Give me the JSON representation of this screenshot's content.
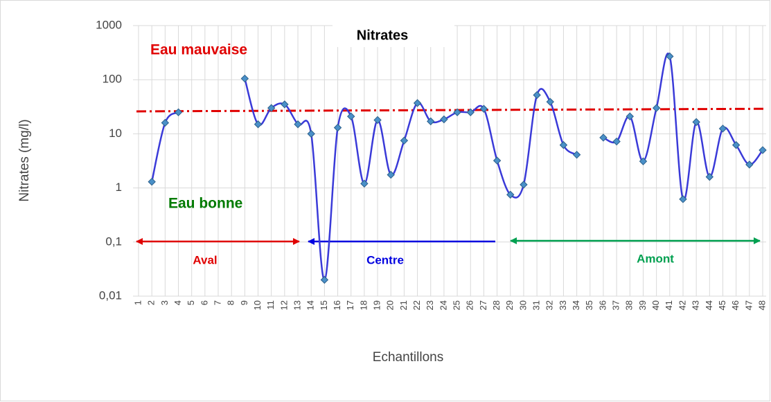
{
  "chart_data": {
    "type": "line",
    "title": "Nitrates",
    "y_label": "Nitrates   (mg/l)",
    "x_label": "Echantillons",
    "categories": [
      "1",
      "2",
      "3",
      "4",
      "5",
      "6",
      "7",
      "8",
      "9",
      "10",
      "11",
      "12",
      "13",
      "14",
      "15",
      "16",
      "17",
      "18",
      "19",
      "20",
      "21",
      "22",
      "23",
      "24",
      "25",
      "26",
      "27",
      "28",
      "29",
      "30",
      "31",
      "32",
      "33",
      "34",
      "35",
      "36",
      "37",
      "38",
      "39",
      "40",
      "41",
      "42",
      "43",
      "44",
      "45",
      "46",
      "47",
      "48"
    ],
    "series": [
      {
        "name": "Nitrates",
        "color": "#3a3ad8",
        "marker_color": "#4a90c8",
        "values": [
          null,
          1.3,
          16,
          25,
          null,
          null,
          null,
          null,
          105,
          15,
          30,
          35,
          15,
          10,
          0.02,
          13,
          21,
          1.2,
          18,
          1.75,
          7.5,
          37,
          17,
          18.5,
          25,
          25,
          29,
          3.2,
          0.75,
          1.15,
          52,
          39,
          6.2,
          4.1,
          null,
          8.5,
          7.2,
          21,
          3.1,
          30,
          270,
          0.62,
          16.5,
          1.6,
          12.5,
          6.2,
          2.7,
          5
        ]
      }
    ],
    "log_scale": true,
    "ylim": [
      0.01,
      1000
    ],
    "yticks": [
      {
        "value": 0.01,
        "label": "0,01"
      },
      {
        "value": 0.1,
        "label": "0,1"
      },
      1,
      10,
      100,
      1000
    ],
    "grid": true,
    "reference_line": {
      "start": 26,
      "end": 29,
      "color": "#e00000"
    },
    "annotations": {
      "bad": "Eau  mauvaise",
      "good": "Eau bonne",
      "aval": "Aval",
      "centre": "Centre",
      "amont": "Amont"
    }
  }
}
